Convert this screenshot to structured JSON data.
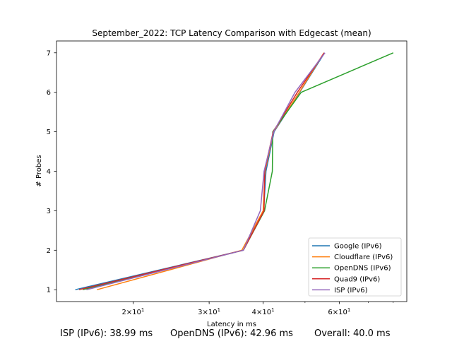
{
  "chart_data": {
    "type": "line",
    "title": "September_2022: TCP Latency Comparison with Edgecast (mean)",
    "xlabel": "Latency in ms",
    "ylabel": "# Probes",
    "x_scale": "log",
    "xlim": [
      13.3,
      86
    ],
    "ylim": [
      0.7,
      7.3
    ],
    "x_ticks": [
      {
        "value": 20,
        "label": "2×10^1"
      },
      {
        "value": 30,
        "label": "3×10^1"
      },
      {
        "value": 40,
        "label": "4×10^1"
      },
      {
        "value": 60,
        "label": "6×10^1"
      }
    ],
    "y_ticks": [
      1,
      2,
      3,
      4,
      5,
      6,
      7
    ],
    "grid": false,
    "legend_position": "lower-right",
    "y": [
      1,
      2,
      3,
      4,
      5,
      6,
      7
    ],
    "series": [
      {
        "name": "Google (IPv6)",
        "color": "#1f77b4",
        "x": [
          14.7,
          36.0,
          40.1,
          40.6,
          42.4,
          48.6,
          55.5
        ]
      },
      {
        "name": "Cloudflare (IPv6)",
        "color": "#ff7f0e",
        "x": [
          16.5,
          35.7,
          40.0,
          40.4,
          42.3,
          48.5,
          55.3
        ]
      },
      {
        "name": "OpenDNS (IPv6)",
        "color": "#2ca02c",
        "x": [
          15.3,
          36.0,
          40.3,
          42.0,
          42.1,
          49.0,
          80.0
        ]
      },
      {
        "name": "Quad9 (IPv6)",
        "color": "#d62728",
        "x": [
          15.0,
          36.0,
          40.2,
          40.3,
          42.2,
          48.0,
          55.4
        ]
      },
      {
        "name": "ISP (IPv6)",
        "color": "#9467bd",
        "x": [
          15.6,
          36.0,
          39.4,
          40.2,
          42.3,
          47.4,
          55.6
        ]
      }
    ]
  },
  "footer": {
    "isp": "ISP (IPv6): 38.99 ms",
    "opendns": "OpenDNS (IPv6): 42.96 ms",
    "overall": "Overall: 40.0 ms"
  }
}
